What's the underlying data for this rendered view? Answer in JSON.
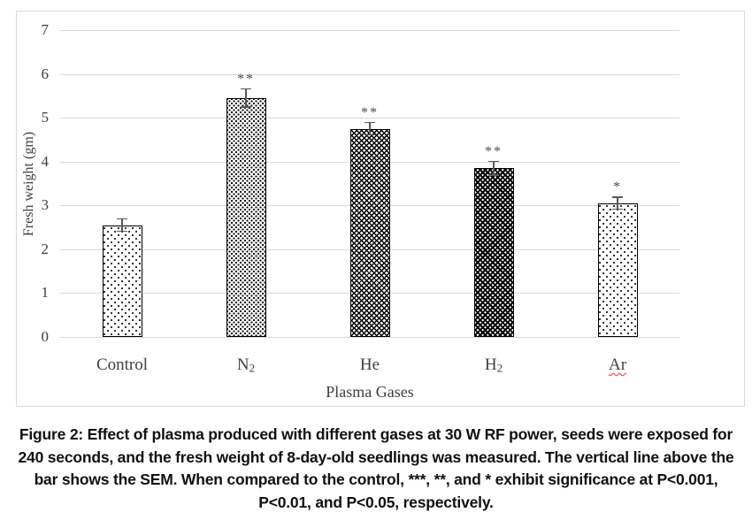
{
  "figure": {
    "caption_lines": [
      "Figure 2: Effect of plasma produced with different gases at 30 W RF power, seeds were exposed for",
      "240 seconds, and the fresh weight of 8-day-old seedlings was measured. The vertical line above the",
      "bar shows the SEM. When compared to the control, ***, **, and * exhibit significance at P<0.001,",
      "P<0.01, and P<0.05, respectively."
    ]
  },
  "chart_data": {
    "type": "bar",
    "title": "",
    "categories": [
      "Control",
      "N₂",
      "He",
      "H₂",
      "Ar"
    ],
    "values": [
      2.55,
      5.45,
      4.75,
      3.85,
      3.05
    ],
    "sem": [
      0.15,
      0.22,
      0.15,
      0.17,
      0.15
    ],
    "significance": [
      "",
      "**",
      "**",
      "**",
      "*"
    ],
    "bar_patterns": [
      "dots-sparse",
      "dots-dense",
      "trellis",
      "dark-trellis",
      "dots-sparse"
    ],
    "xlabel": "Plasma Gases",
    "ylabel": "Fresh weight (gm)",
    "ylim": [
      0,
      7
    ],
    "ytick_step": 1,
    "yticks": [
      "0",
      "1",
      "2",
      "3",
      "4",
      "5",
      "6",
      "7"
    ],
    "grid": true,
    "legend": "none",
    "spellcheck_wavy_underline": "Ar"
  },
  "colors": {
    "grid": "#d9d9d9",
    "frame_border": "#d9d9d9",
    "bar_outline": "#000000",
    "error_bar": "#595959",
    "axis_text": "#404040",
    "significance": "#4d4d4d",
    "caption_text": "#111111",
    "spellcheck": "#ff2a2a"
  }
}
